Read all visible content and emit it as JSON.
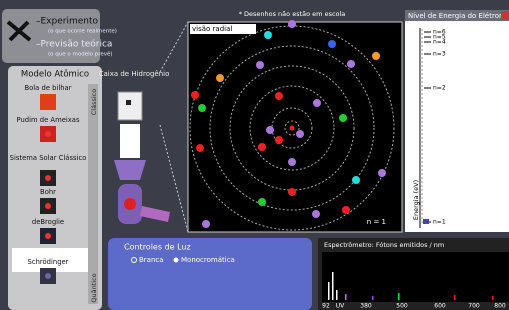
{
  "legend": {
    "experiment": "–Experimento",
    "experiment_note": "(o que ocorre realmente)",
    "prediction": "–Previsão teórica",
    "prediction_note": "(o que o modelo prevê)"
  },
  "models": {
    "title": "Modelo Atômico",
    "items": [
      "Bola de bilhar",
      "Pudim de Ameixas",
      "Sistema Solar Clássico",
      "Bohr",
      "deBroglie",
      "Schrödinger"
    ],
    "classical": "Clássico",
    "quantum": "Quântico"
  },
  "box_label": "Caixa de Hidrogênio",
  "scale_note": "* Desenhos não estão em escola",
  "view": {
    "dropdown": "visão radial",
    "state": "n = 1"
  },
  "energy": {
    "title": "Nível de Energia do Elétron",
    "axis": "Energia (eV)",
    "levels": [
      "n=6",
      "n=5",
      "n=4",
      "n=3",
      "n=2",
      "n=1"
    ]
  },
  "light": {
    "title": "Controles de Luz",
    "options": [
      "Branca",
      "Monocromática"
    ]
  },
  "spectrometer": {
    "title": "Espectrômetro: Fótons emitidos / nm",
    "ticks": [
      "92",
      "UV",
      "380",
      "500",
      "600",
      "700",
      "800"
    ]
  }
}
